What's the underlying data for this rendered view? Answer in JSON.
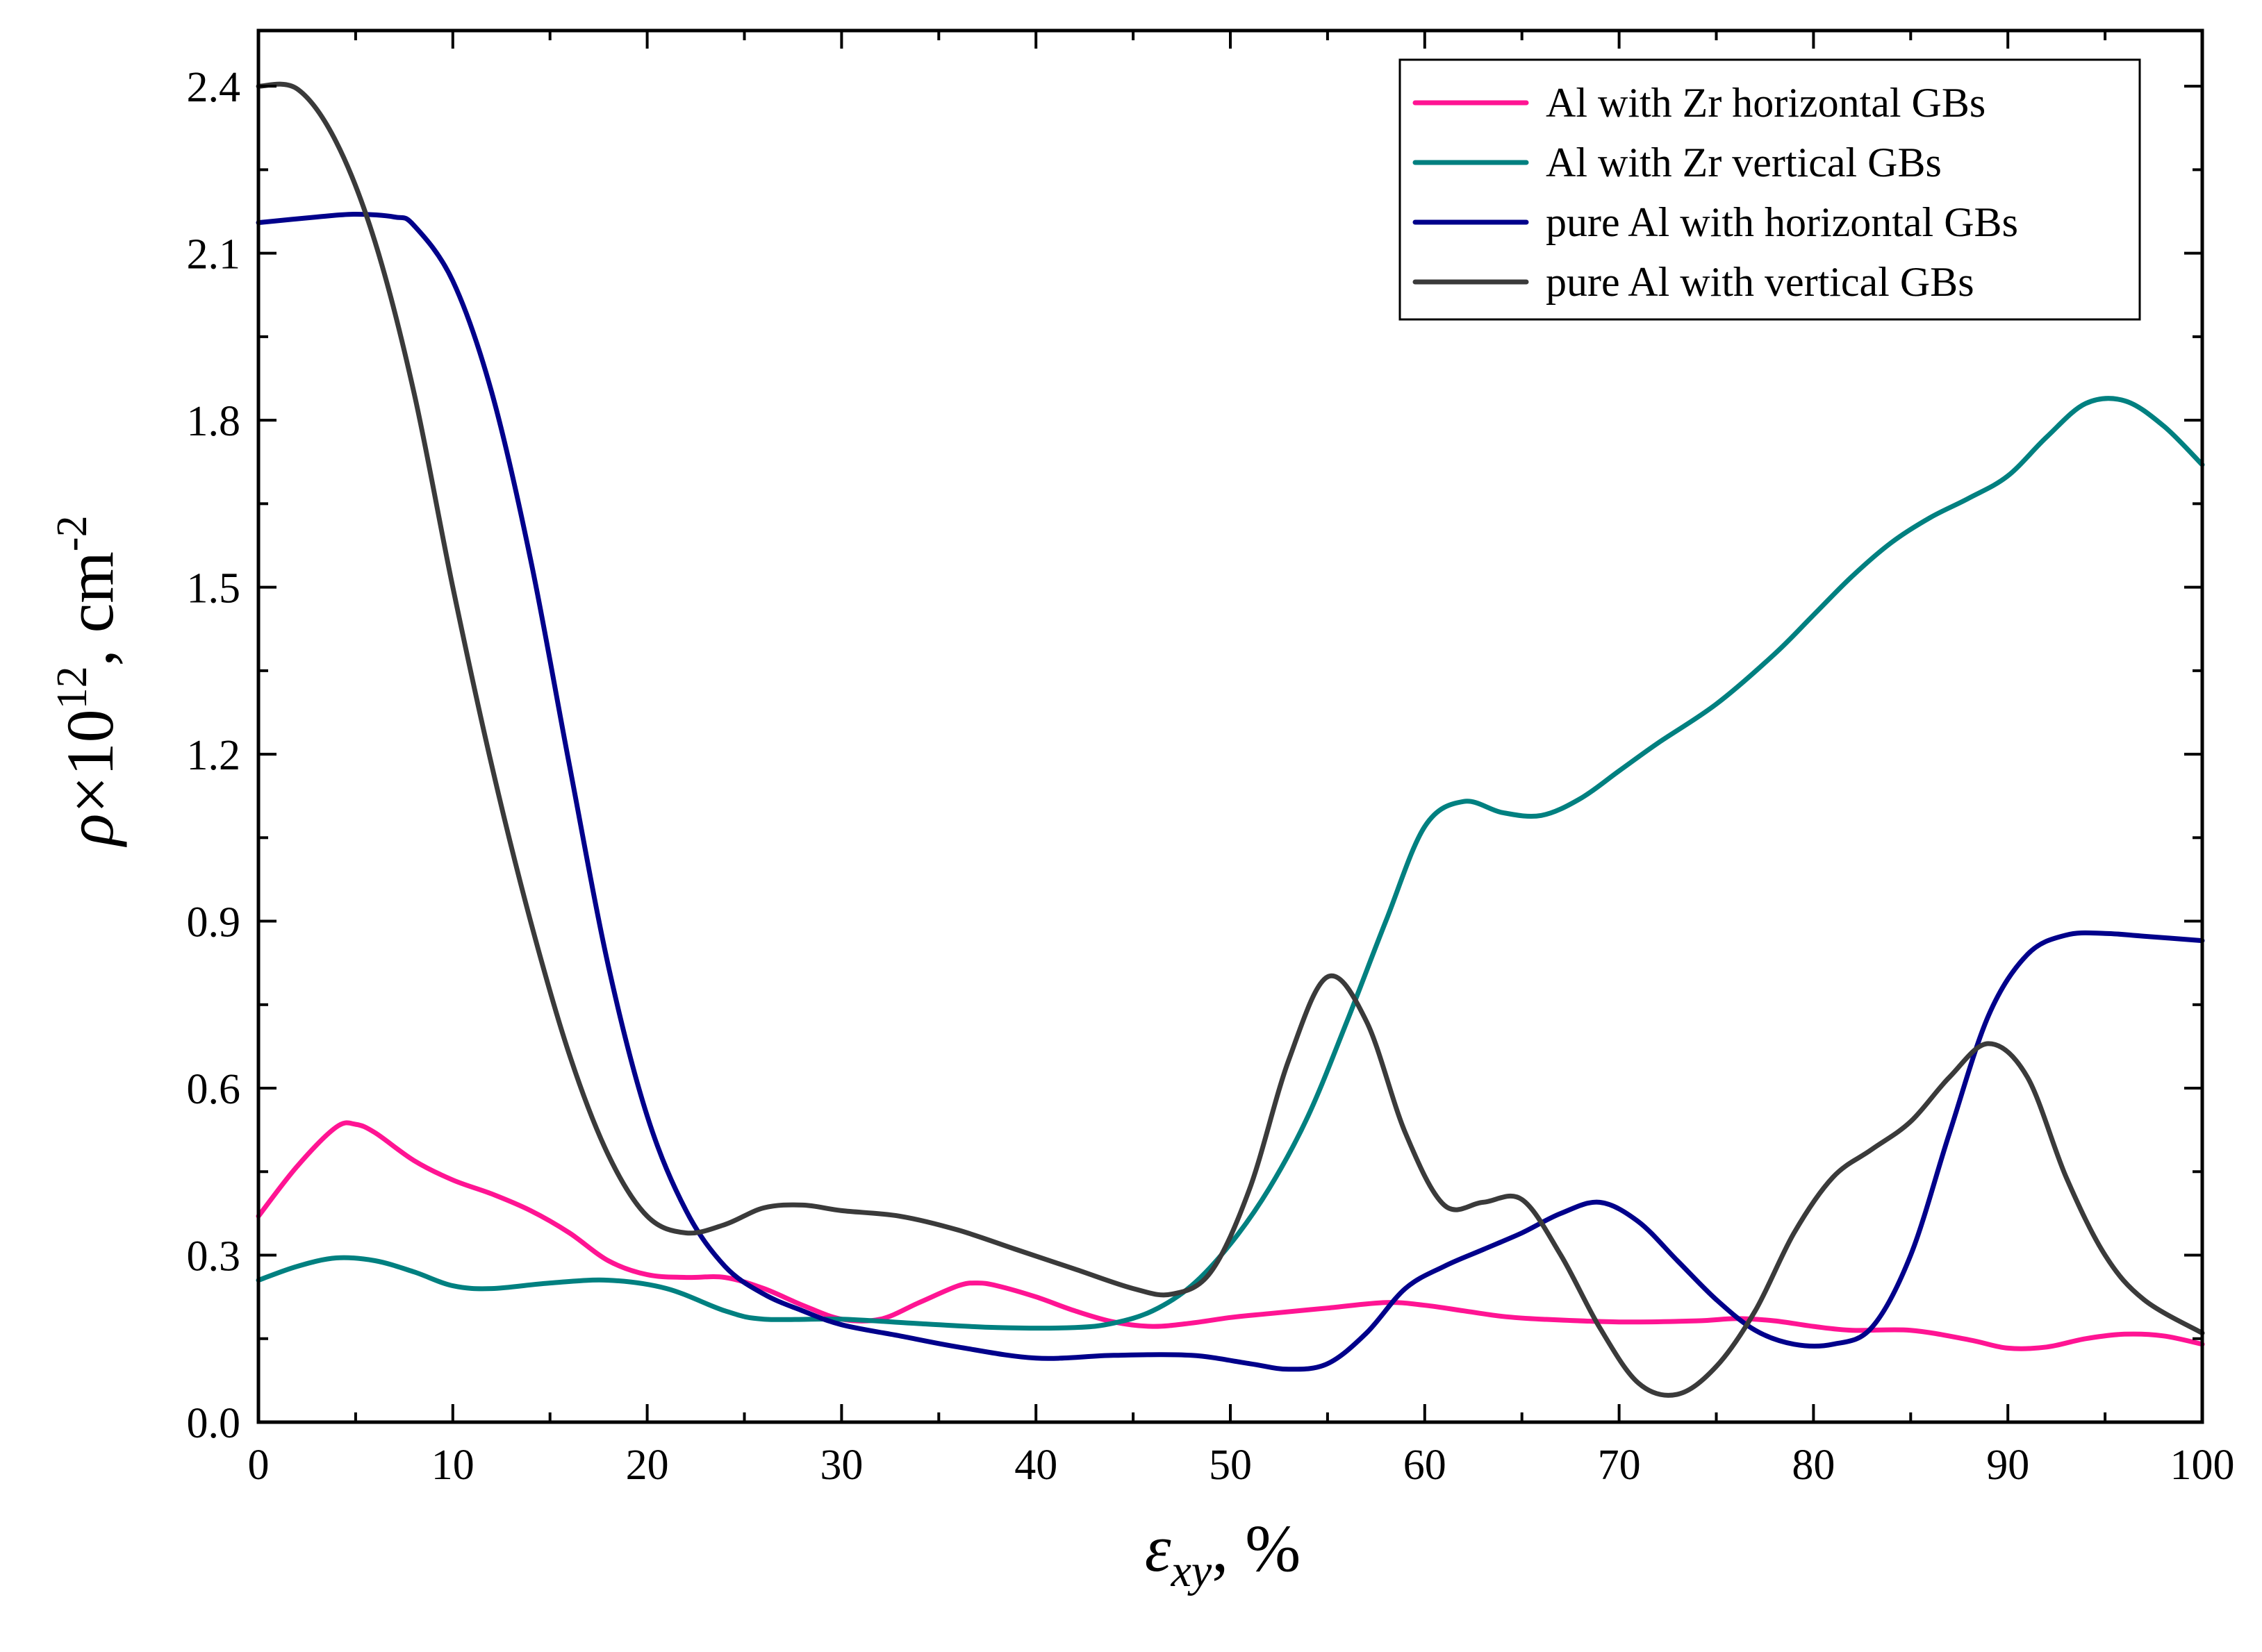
{
  "chart_data": {
    "type": "line",
    "title": "",
    "xlabel": {
      "symbol": "ε",
      "subscript": "xy",
      "suffix": ", %"
    },
    "ylabel": {
      "symbol": "ρ",
      "times": "×10",
      "exponent": "12",
      "unit": ", cm",
      "unit_exponent": "-2"
    },
    "xlim": [
      0,
      100
    ],
    "ylim": [
      0,
      2.5
    ],
    "x_ticks": [
      0,
      10,
      20,
      30,
      40,
      50,
      60,
      70,
      80,
      90,
      100
    ],
    "x_tick_labels": [
      "0",
      "10",
      "20",
      "30",
      "40",
      "50",
      "60",
      "70",
      "80",
      "90",
      "100"
    ],
    "y_ticks": [
      0,
      0.3,
      0.6,
      0.9,
      1.2,
      1.5,
      1.8,
      2.1,
      2.4
    ],
    "y_tick_labels": [
      "0.0",
      "0.3",
      "0.6",
      "0.9",
      "1.2",
      "1.5",
      "1.8",
      "2.1",
      "2.4"
    ],
    "grid": false,
    "legend_position": "top-right",
    "series": [
      {
        "name": "Al with Zr horizontal GBs",
        "color": "#ff1493",
        "points": [
          [
            0,
            0.37
          ],
          [
            2,
            0.46
          ],
          [
            4,
            0.53
          ],
          [
            5,
            0.535
          ],
          [
            6,
            0.52
          ],
          [
            8,
            0.47
          ],
          [
            10,
            0.435
          ],
          [
            12,
            0.41
          ],
          [
            14,
            0.38
          ],
          [
            16,
            0.34
          ],
          [
            18,
            0.29
          ],
          [
            20,
            0.265
          ],
          [
            22,
            0.26
          ],
          [
            24,
            0.26
          ],
          [
            26,
            0.24
          ],
          [
            28,
            0.21
          ],
          [
            30,
            0.185
          ],
          [
            32,
            0.185
          ],
          [
            34,
            0.215
          ],
          [
            36,
            0.245
          ],
          [
            37,
            0.25
          ],
          [
            38,
            0.245
          ],
          [
            40,
            0.225
          ],
          [
            42,
            0.2
          ],
          [
            44,
            0.18
          ],
          [
            46,
            0.172
          ],
          [
            48,
            0.178
          ],
          [
            50,
            0.188
          ],
          [
            52,
            0.195
          ],
          [
            55,
            0.205
          ],
          [
            58,
            0.215
          ],
          [
            60,
            0.21
          ],
          [
            62,
            0.2
          ],
          [
            64,
            0.19
          ],
          [
            66,
            0.185
          ],
          [
            70,
            0.18
          ],
          [
            74,
            0.182
          ],
          [
            76,
            0.186
          ],
          [
            78,
            0.182
          ],
          [
            80,
            0.172
          ],
          [
            82,
            0.165
          ],
          [
            85,
            0.165
          ],
          [
            88,
            0.148
          ],
          [
            90,
            0.133
          ],
          [
            92,
            0.135
          ],
          [
            94,
            0.15
          ],
          [
            96,
            0.158
          ],
          [
            98,
            0.155
          ],
          [
            100,
            0.14
          ]
        ]
      },
      {
        "name": "Al with Zr vertical GBs",
        "color": "#008080",
        "points": [
          [
            0,
            0.255
          ],
          [
            2,
            0.28
          ],
          [
            4,
            0.295
          ],
          [
            6,
            0.29
          ],
          [
            8,
            0.27
          ],
          [
            10,
            0.245
          ],
          [
            12,
            0.24
          ],
          [
            15,
            0.25
          ],
          [
            18,
            0.255
          ],
          [
            21,
            0.24
          ],
          [
            24,
            0.2
          ],
          [
            26,
            0.185
          ],
          [
            30,
            0.185
          ],
          [
            34,
            0.177
          ],
          [
            38,
            0.17
          ],
          [
            42,
            0.17
          ],
          [
            44,
            0.178
          ],
          [
            46,
            0.2
          ],
          [
            48,
            0.245
          ],
          [
            50,
            0.32
          ],
          [
            52,
            0.42
          ],
          [
            54,
            0.55
          ],
          [
            56,
            0.72
          ],
          [
            58,
            0.9
          ],
          [
            60,
            1.07
          ],
          [
            62,
            1.115
          ],
          [
            64,
            1.095
          ],
          [
            66,
            1.09
          ],
          [
            68,
            1.12
          ],
          [
            70,
            1.17
          ],
          [
            72,
            1.22
          ],
          [
            75,
            1.29
          ],
          [
            78,
            1.38
          ],
          [
            80,
            1.45
          ],
          [
            82,
            1.52
          ],
          [
            84,
            1.58
          ],
          [
            86,
            1.625
          ],
          [
            88,
            1.66
          ],
          [
            90,
            1.7
          ],
          [
            92,
            1.77
          ],
          [
            94,
            1.83
          ],
          [
            96,
            1.835
          ],
          [
            98,
            1.79
          ],
          [
            100,
            1.72
          ]
        ]
      },
      {
        "name": "pure Al with horizontal GBs",
        "color": "#00008b",
        "points": [
          [
            0,
            2.155
          ],
          [
            3,
            2.165
          ],
          [
            5,
            2.17
          ],
          [
            7,
            2.165
          ],
          [
            8,
            2.15
          ],
          [
            10,
            2.05
          ],
          [
            12,
            1.85
          ],
          [
            14,
            1.55
          ],
          [
            16,
            1.18
          ],
          [
            18,
            0.82
          ],
          [
            20,
            0.55
          ],
          [
            22,
            0.38
          ],
          [
            24,
            0.28
          ],
          [
            26,
            0.23
          ],
          [
            28,
            0.2
          ],
          [
            30,
            0.175
          ],
          [
            33,
            0.155
          ],
          [
            36,
            0.135
          ],
          [
            40,
            0.115
          ],
          [
            44,
            0.12
          ],
          [
            48,
            0.12
          ],
          [
            51,
            0.105
          ],
          [
            53,
            0.095
          ],
          [
            55,
            0.105
          ],
          [
            57,
            0.16
          ],
          [
            59,
            0.24
          ],
          [
            61,
            0.28
          ],
          [
            63,
            0.31
          ],
          [
            65,
            0.34
          ],
          [
            67,
            0.375
          ],
          [
            69,
            0.395
          ],
          [
            71,
            0.36
          ],
          [
            73,
            0.29
          ],
          [
            75,
            0.22
          ],
          [
            77,
            0.165
          ],
          [
            79,
            0.14
          ],
          [
            81,
            0.14
          ],
          [
            83,
            0.17
          ],
          [
            85,
            0.3
          ],
          [
            87,
            0.52
          ],
          [
            89,
            0.73
          ],
          [
            91,
            0.84
          ],
          [
            93,
            0.875
          ],
          [
            95,
            0.878
          ],
          [
            97,
            0.873
          ],
          [
            100,
            0.865
          ]
        ]
      },
      {
        "name": "pure Al with vertical GBs",
        "color": "#3a3a3a",
        "points": [
          [
            0,
            2.4
          ],
          [
            2,
            2.395
          ],
          [
            4,
            2.3
          ],
          [
            6,
            2.12
          ],
          [
            8,
            1.85
          ],
          [
            10,
            1.5
          ],
          [
            12,
            1.18
          ],
          [
            14,
            0.9
          ],
          [
            16,
            0.66
          ],
          [
            18,
            0.48
          ],
          [
            20,
            0.37
          ],
          [
            22,
            0.34
          ],
          [
            24,
            0.355
          ],
          [
            26,
            0.385
          ],
          [
            28,
            0.39
          ],
          [
            30,
            0.38
          ],
          [
            33,
            0.37
          ],
          [
            36,
            0.345
          ],
          [
            39,
            0.31
          ],
          [
            42,
            0.275
          ],
          [
            45,
            0.24
          ],
          [
            47,
            0.23
          ],
          [
            49,
            0.27
          ],
          [
            51,
            0.42
          ],
          [
            53,
            0.65
          ],
          [
            55,
            0.8
          ],
          [
            57,
            0.72
          ],
          [
            59,
            0.52
          ],
          [
            61,
            0.39
          ],
          [
            63,
            0.395
          ],
          [
            65,
            0.4
          ],
          [
            67,
            0.3
          ],
          [
            69,
            0.17
          ],
          [
            71,
            0.07
          ],
          [
            73,
            0.05
          ],
          [
            75,
            0.1
          ],
          [
            77,
            0.2
          ],
          [
            79,
            0.34
          ],
          [
            81,
            0.44
          ],
          [
            83,
            0.49
          ],
          [
            85,
            0.54
          ],
          [
            87,
            0.62
          ],
          [
            89,
            0.68
          ],
          [
            91,
            0.62
          ],
          [
            93,
            0.44
          ],
          [
            95,
            0.3
          ],
          [
            97,
            0.22
          ],
          [
            100,
            0.16
          ]
        ]
      }
    ]
  }
}
